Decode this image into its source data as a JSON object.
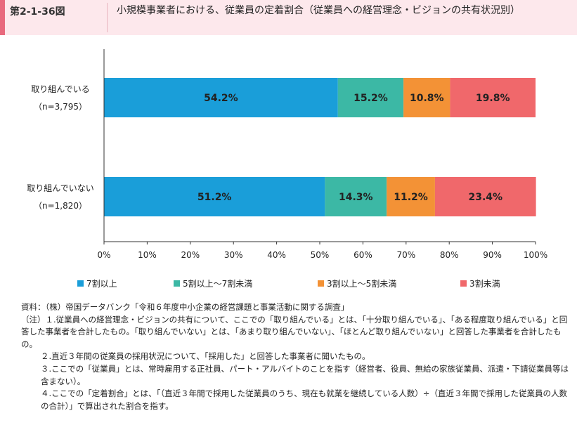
{
  "figure": {
    "number": "第2-1-36図",
    "title": "小規模事業者における、従業員の定着割合（従業員への経営理念・ビジョンの共有状況別）"
  },
  "chart_data": {
    "type": "bar",
    "orientation": "horizontal",
    "stacked": true,
    "percent_stacked": true,
    "categories": [
      "取り組んでいる",
      "取り組んでいない"
    ],
    "category_sublabels": [
      "（n=3,795）",
      "（n=1,820）"
    ],
    "series": [
      {
        "name": "7割以上",
        "values": [
          54.2,
          51.2
        ],
        "color": "#1a9ed9"
      },
      {
        "name": "5割以上～7割未満",
        "values": [
          15.2,
          14.3
        ],
        "color": "#3cb8a5"
      },
      {
        "name": "3割以上～5割未満",
        "values": [
          10.8,
          11.2
        ],
        "color": "#f39236"
      },
      {
        "name": "3割未満",
        "values": [
          19.8,
          23.4
        ],
        "color": "#f0686b"
      }
    ],
    "value_labels": [
      [
        "54.2%",
        "51.2%"
      ],
      [
        "15.2%",
        "14.3%"
      ],
      [
        "10.8%",
        "11.2%"
      ],
      [
        "19.8%",
        "23.4%"
      ]
    ],
    "xlim": [
      0,
      100
    ],
    "xticks": [
      "0%",
      "10%",
      "20%",
      "30%",
      "40%",
      "50%",
      "60%",
      "70%",
      "80%",
      "90%",
      "100%"
    ],
    "grid": false,
    "legend_position": "bottom"
  },
  "notes": [
    "資料：（株）帝国データバンク「令和６年度中小企業の経営課題と事業活動に関する調査」",
    "（注）１.従業員への経営理念・ビジョンの共有について、ここでの「取り組んでいる」とは、「十分取り組んでいる」、「ある程度取り組んでいる」と回答した事業者を合計したもの。「取り組んでいない」とは、「あまり取り組んでいない」、「ほとんど取り組んでいない」と回答した事業者を合計したもの。",
    "２.直近３年間の従業員の採用状況について、「採用した」と回答した事業者に聞いたもの。",
    "３.ここでの「従業員」とは、常時雇用する正社員、パート・アルバイトのことを指す（経営者、役員、無給の家族従業員、派遣・下請従業員等は含まない）。",
    "４.ここでの「定着割合」とは、「（直近３年間で採用した従業員のうち、現在も就業を継続している人数）÷（直近３年間で採用した従業員の人数の合計）」で算出された割合を指す。"
  ]
}
